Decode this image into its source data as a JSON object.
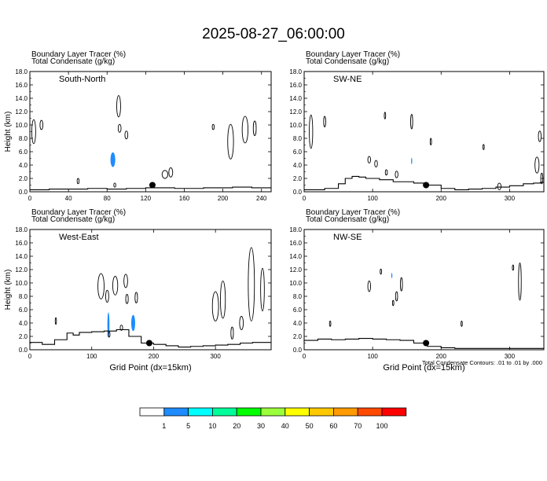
{
  "title": "2025-08-27_06:00:00",
  "panel_header": {
    "line1": "Boundary Layer Tracer   (%)",
    "line2": "Total Condensate   (g/kg)"
  },
  "contour_note": "Total Condensate Contours: .01 to .01 by .000",
  "colorbar": {
    "labels": [
      "1",
      "5",
      "10",
      "20",
      "30",
      "40",
      "50",
      "60",
      "70",
      "100"
    ],
    "colors": [
      "#ffffff",
      "#1e8cff",
      "#00ffff",
      "#00ff9a",
      "#00ff00",
      "#9cff3c",
      "#ffff00",
      "#ffc800",
      "#ff9a00",
      "#ff4a00",
      "#ff0000"
    ]
  },
  "chart_data": [
    {
      "type": "contour",
      "label": "South-North",
      "ylabel": "Height (km)",
      "xlabel": "",
      "ylim": [
        0,
        18
      ],
      "xlim": [
        0,
        250
      ],
      "yticks": [
        "0.0",
        "2.0",
        "4.0",
        "6.0",
        "8.0",
        "10.0",
        "12.0",
        "14.0",
        "16.0",
        "18.0"
      ],
      "xticks": [
        "0",
        "40",
        "80",
        "120",
        "160",
        "200",
        "240"
      ],
      "xtick_values": [
        0,
        40,
        80,
        120,
        160,
        200,
        240
      ],
      "marker": [
        127,
        1.0
      ],
      "terrain": [
        [
          0,
          0.3
        ],
        [
          10,
          0.3
        ],
        [
          20,
          0.3
        ],
        [
          30,
          0.4
        ],
        [
          40,
          0.4
        ],
        [
          60,
          0.4
        ],
        [
          80,
          0.5
        ],
        [
          100,
          0.4
        ],
        [
          120,
          0.5
        ],
        [
          150,
          0.6
        ],
        [
          180,
          0.5
        ],
        [
          210,
          0.6
        ],
        [
          230,
          0.7
        ],
        [
          240,
          0.6
        ],
        [
          250,
          0.6
        ]
      ],
      "tracer": [
        [
          86,
          4.8,
          2.5,
          1.1
        ]
      ],
      "contours": [
        [
          92,
          12.8,
          2,
          1.6
        ],
        [
          93,
          9.5,
          1.5,
          0.6
        ],
        [
          100,
          8.5,
          1.5,
          0.6
        ],
        [
          12,
          10,
          1.5,
          0.7
        ],
        [
          4,
          9,
          2,
          1.8
        ],
        [
          208,
          7.5,
          3,
          2.6
        ],
        [
          223,
          9.3,
          3,
          2
        ],
        [
          233,
          9.5,
          1.5,
          1.1
        ],
        [
          140,
          2.6,
          3,
          0.6
        ],
        [
          146,
          2.9,
          2,
          0.7
        ],
        [
          50,
          1.6,
          1,
          0.4
        ],
        [
          88,
          1,
          1,
          0.3
        ],
        [
          190,
          9.7,
          1,
          0.4
        ]
      ]
    },
    {
      "type": "contour",
      "label": "SW-NE",
      "ylabel": "",
      "xlabel": "",
      "ylim": [
        0,
        18
      ],
      "xlim": [
        0,
        350
      ],
      "yticks": [
        "0.0",
        "2.0",
        "4.0",
        "6.0",
        "8.0",
        "10.0",
        "12.0",
        "14.0",
        "16.0",
        "18.0"
      ],
      "xticks": [
        "0",
        "100",
        "200",
        "300"
      ],
      "xtick_values": [
        0,
        100,
        200,
        300
      ],
      "marker": [
        178,
        1.0
      ],
      "terrain": [
        [
          0,
          0.3
        ],
        [
          30,
          0.3
        ],
        [
          50,
          0.5
        ],
        [
          60,
          1.2
        ],
        [
          70,
          2.0
        ],
        [
          80,
          2.3
        ],
        [
          90,
          2.2
        ],
        [
          110,
          2.0
        ],
        [
          130,
          1.8
        ],
        [
          160,
          1.5
        ],
        [
          180,
          1.3
        ],
        [
          200,
          1.0
        ],
        [
          220,
          0.5
        ],
        [
          240,
          0.3
        ],
        [
          260,
          0.4
        ],
        [
          280,
          0.5
        ],
        [
          300,
          0.7
        ],
        [
          320,
          0.9
        ],
        [
          335,
          1.2
        ],
        [
          345,
          1.3
        ],
        [
          350,
          1.4
        ]
      ],
      "tracer": [
        [
          157,
          4.6,
          0.8,
          0.5
        ]
      ],
      "contours": [
        [
          10,
          9,
          2.5,
          2.5
        ],
        [
          30,
          10.5,
          1.5,
          0.8
        ],
        [
          95,
          4.8,
          2,
          0.5
        ],
        [
          105,
          4.2,
          2,
          0.5
        ],
        [
          120,
          2.9,
          1.5,
          0.4
        ],
        [
          135,
          2.6,
          2,
          0.5
        ],
        [
          157,
          10.5,
          1.5,
          1.1
        ],
        [
          185,
          7.5,
          1,
          0.5
        ],
        [
          262,
          6.7,
          1,
          0.4
        ],
        [
          285,
          0.8,
          2.5,
          0.5
        ],
        [
          344,
          8.3,
          2,
          0.8
        ],
        [
          340,
          4,
          3,
          1.2
        ],
        [
          347,
          2,
          1.5,
          0.8
        ],
        [
          118,
          11.4,
          1,
          0.5
        ]
      ]
    },
    {
      "type": "contour",
      "label": "West-East",
      "ylabel": "Height (km)",
      "xlabel": "Grid Point (dx=15km)",
      "ylim": [
        0,
        18
      ],
      "xlim": [
        0,
        390
      ],
      "yticks": [
        "0.0",
        "2.0",
        "4.0",
        "6.0",
        "8.0",
        "10.0",
        "12.0",
        "14.0",
        "16.0",
        "18.0"
      ],
      "xticks": [
        "0",
        "100",
        "200",
        "300"
      ],
      "xtick_values": [
        0,
        100,
        200,
        300
      ],
      "marker": [
        193,
        1.0
      ],
      "terrain": [
        [
          0,
          1.2
        ],
        [
          20,
          1.1
        ],
        [
          40,
          0.8
        ],
        [
          60,
          1.5
        ],
        [
          70,
          2.5
        ],
        [
          80,
          2.2
        ],
        [
          100,
          2.6
        ],
        [
          120,
          2.7
        ],
        [
          140,
          2.8
        ],
        [
          160,
          3.0
        ],
        [
          180,
          2.0
        ],
        [
          200,
          1.0
        ],
        [
          220,
          0.8
        ],
        [
          240,
          0.6
        ],
        [
          260,
          0.4
        ],
        [
          280,
          0.5
        ],
        [
          300,
          0.6
        ],
        [
          320,
          0.7
        ],
        [
          340,
          0.8
        ],
        [
          360,
          1.0
        ],
        [
          390,
          1.1
        ]
      ],
      "tracer": [
        [
          127,
          3.7,
          1.7,
          1.9
        ],
        [
          167,
          4.0,
          3.2,
          1.2
        ]
      ],
      "contours": [
        [
          115,
          9.5,
          5,
          1.9
        ],
        [
          138,
          9.6,
          4,
          1.4
        ],
        [
          155,
          10.3,
          3,
          1.0
        ],
        [
          125,
          8.0,
          2.5,
          0.9
        ],
        [
          157,
          7.6,
          2,
          0.7
        ],
        [
          172,
          7.8,
          2,
          0.8
        ],
        [
          312,
          7.5,
          4,
          2.8
        ],
        [
          300,
          6.5,
          5,
          2.2
        ],
        [
          358,
          9.8,
          5,
          5.5
        ],
        [
          376,
          9,
          3,
          3.2
        ],
        [
          342,
          4,
          3,
          1.0
        ],
        [
          327,
          2.5,
          2,
          0.9
        ],
        [
          42,
          4.3,
          1,
          0.5
        ],
        [
          128,
          2.3,
          1.5,
          0.4
        ],
        [
          148,
          3.3,
          2,
          0.4
        ]
      ]
    },
    {
      "type": "contour",
      "label": "NW-SE",
      "ylabel": "",
      "xlabel": "Grid Point (dx=15km)",
      "ylim": [
        0,
        18
      ],
      "xlim": [
        0,
        350
      ],
      "yticks": [
        "0.0",
        "2.0",
        "4.0",
        "6.0",
        "8.0",
        "10.0",
        "12.0",
        "14.0",
        "16.0",
        "18.0"
      ],
      "xticks": [
        "0",
        "100",
        "200",
        "300"
      ],
      "xtick_values": [
        0,
        100,
        200,
        300
      ],
      "marker": [
        178,
        1.0
      ],
      "terrain": [
        [
          0,
          1.2
        ],
        [
          20,
          1.4
        ],
        [
          40,
          1.6
        ],
        [
          60,
          1.5
        ],
        [
          80,
          1.6
        ],
        [
          100,
          1.7
        ],
        [
          120,
          1.6
        ],
        [
          140,
          1.5
        ],
        [
          160,
          1.4
        ],
        [
          180,
          1.0
        ],
        [
          200,
          0.5
        ],
        [
          220,
          0.3
        ],
        [
          260,
          0.2
        ],
        [
          300,
          0.2
        ],
        [
          350,
          0.2
        ]
      ],
      "tracer": [
        [
          128,
          11.1,
          0.8,
          0.4
        ]
      ],
      "contours": [
        [
          95,
          9.5,
          2,
          0.8
        ],
        [
          142,
          9.8,
          1.5,
          1.0
        ],
        [
          135,
          8.0,
          1.5,
          0.7
        ],
        [
          130,
          7.0,
          1,
          0.4
        ],
        [
          305,
          12.3,
          1,
          0.4
        ],
        [
          315,
          10.2,
          2,
          2.8
        ],
        [
          230,
          3.9,
          1,
          0.4
        ],
        [
          38,
          3.9,
          1,
          0.4
        ],
        [
          112,
          11.7,
          1,
          0.4
        ]
      ]
    }
  ]
}
